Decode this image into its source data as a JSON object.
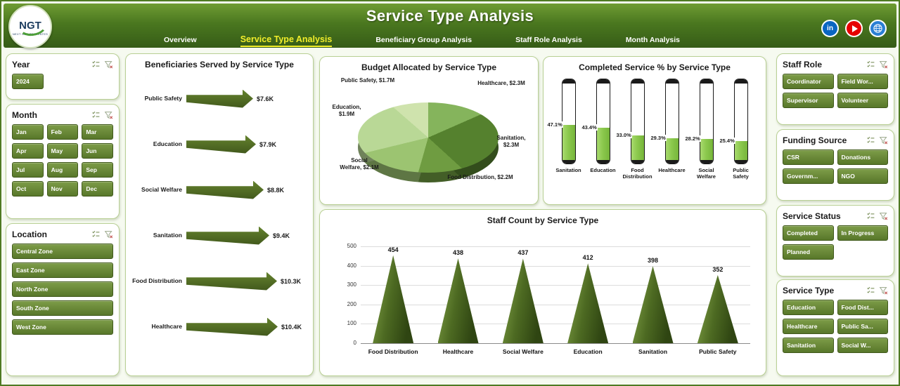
{
  "theme": {
    "header_green_dark": "#365c17",
    "header_green_light": "#6f9c33",
    "active_tab_yellow": "#f2ee2a",
    "button_green": "#6d8c3a",
    "button_border": "#40591b",
    "panel_border": "#b9d095",
    "thermo_fill_green": "#8cc94e",
    "arrow_green": "#42591c",
    "page_bg": "#f6faf0"
  },
  "header": {
    "title": "Service Type Analysis",
    "logo": {
      "text": "NGT",
      "tagline": "NEXT GEN TEMPLATES"
    },
    "nav": [
      {
        "label": "Overview",
        "active": false
      },
      {
        "label": "Service Type Analysis",
        "active": true
      },
      {
        "label": "Beneficiary Group Analysis",
        "active": false
      },
      {
        "label": "Staff Role Analysis",
        "active": false
      },
      {
        "label": "Month Analysis",
        "active": false
      }
    ],
    "social": [
      {
        "icon": "linkedin-icon",
        "color": "#0a66c2"
      },
      {
        "icon": "youtube-icon",
        "color": "#e60000"
      },
      {
        "icon": "globe-icon",
        "color": "#2a7fd4"
      }
    ]
  },
  "slicers": {
    "year": {
      "title": "Year",
      "items": [
        "2024"
      ]
    },
    "month": {
      "title": "Month",
      "items": [
        "Jan",
        "Feb",
        "Mar",
        "Apr",
        "May",
        "Jun",
        "Jul",
        "Aug",
        "Sep",
        "Oct",
        "Nov",
        "Dec"
      ]
    },
    "location": {
      "title": "Location",
      "items": [
        "Central Zone",
        "East Zone",
        "North Zone",
        "South Zone",
        "West Zone"
      ]
    },
    "staff_role": {
      "title": "Staff Role",
      "items": [
        "Coordinator",
        "Field Wor...",
        "Supervisor",
        "Volunteer"
      ]
    },
    "funding_source": {
      "title": "Funding Source",
      "items": [
        "CSR",
        "Donations",
        "Governm...",
        "NGO"
      ]
    },
    "service_status": {
      "title": "Service Status",
      "items": [
        "Completed",
        "In Progress",
        "Planned"
      ]
    },
    "service_type": {
      "title": "Service Type",
      "items": [
        "Education",
        "Food Dist...",
        "Healthcare",
        "Public Sa...",
        "Sanitation",
        "Social W..."
      ]
    }
  },
  "chart_data": [
    {
      "type": "bar",
      "style": "arrow",
      "orientation": "horizontal",
      "title": "Beneficiaries Served by Service Type",
      "categories": [
        "Public Safety",
        "Education",
        "Social Welfare",
        "Sanitation",
        "Food Distribution",
        "Healthcare"
      ],
      "values": [
        7600,
        7900,
        8800,
        9400,
        10300,
        10400
      ],
      "labels": [
        "$7.6K",
        "$7.9K",
        "$8.8K",
        "$9.4K",
        "$10.3K",
        "$10.4K"
      ]
    },
    {
      "type": "pie",
      "style": "3d",
      "title": "Budget Allocated by Service Type",
      "categories": [
        "Healthcare",
        "Sanitation",
        "Food Distribution",
        "Social Welfare",
        "Education",
        "Public Safety"
      ],
      "values": [
        2.3,
        2.3,
        2.2,
        2.1,
        1.9,
        1.7
      ],
      "labels": [
        "Healthcare, $2.3M",
        "Sanitation, $2.3M",
        "Food Distribution, $2.2M",
        "Social Welfare, $2.1M",
        "Education, $1.9M",
        "Public Safety, $1.7M"
      ],
      "colors": [
        "#85b45c",
        "#55812e",
        "#6f9c41",
        "#9cc471",
        "#b9d896",
        "#cfe3ad"
      ]
    },
    {
      "type": "bar",
      "style": "thermometer",
      "title": "Completed Service % by Service Type",
      "categories": [
        "Sanitation",
        "Education",
        "Food Distribution",
        "Healthcare",
        "Social Welfare",
        "Public Safety"
      ],
      "values": [
        47.1,
        43.4,
        33.0,
        29.3,
        28.2,
        25.4
      ],
      "labels": [
        "47.1%",
        "43.4%",
        "33.0%",
        "29.3%",
        "28.2%",
        "25.4%"
      ],
      "ylim": [
        0,
        100
      ]
    },
    {
      "type": "bar",
      "style": "cone",
      "title": "Staff Count by Service Type",
      "categories": [
        "Food Distribution",
        "Healthcare",
        "Social Welfare",
        "Education",
        "Sanitation",
        "Public Safety"
      ],
      "values": [
        454,
        438,
        437,
        412,
        398,
        352
      ],
      "ylim": [
        0,
        500
      ],
      "yticks": [
        0,
        100,
        200,
        300,
        400,
        500
      ]
    }
  ]
}
